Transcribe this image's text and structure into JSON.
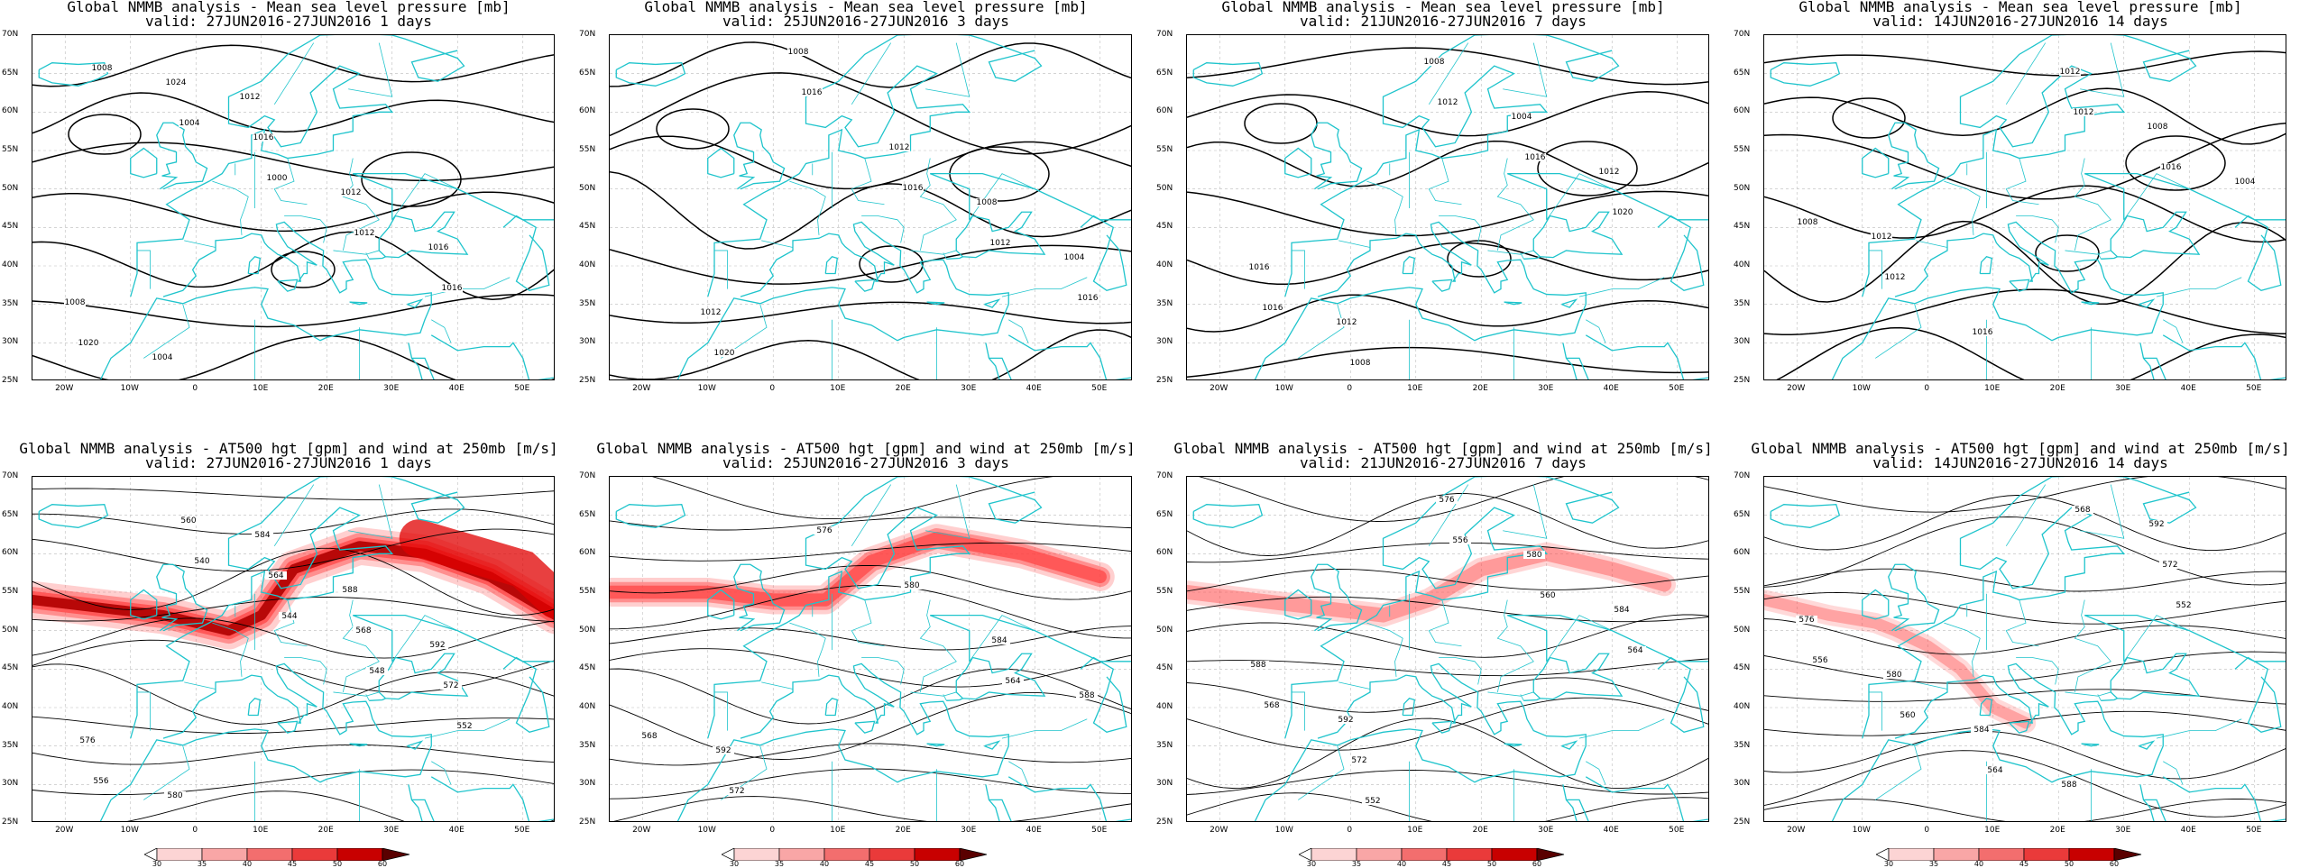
{
  "panels_top": [
    {
      "title": "Global NMMB analysis - Mean sea level pressure [mb]",
      "valid": "valid: 27JUN2016-27JUN2016   1 days",
      "labels": [
        "1008",
        "1004",
        "1000",
        "1012",
        "1016",
        "1020",
        "1024",
        "1016",
        "1012",
        "1016",
        "1008",
        "1004",
        "1012"
      ]
    },
    {
      "title": "Global NMMB analysis - Mean sea level pressure [mb]",
      "valid": "valid: 25JUN2016-27JUN2016   3 days",
      "labels": [
        "1016",
        "1012",
        "1016",
        "1020",
        "1016",
        "1012",
        "1008",
        "1004",
        "1012",
        "1008"
      ]
    },
    {
      "title": "Global NMMB analysis - Mean sea level pressure [mb]",
      "valid": "valid: 21JUN2016-27JUN2016   7 days",
      "labels": [
        "1016",
        "1008",
        "1012",
        "1016",
        "1020",
        "1016",
        "1012",
        "1008",
        "1004",
        "1012"
      ]
    },
    {
      "title": "Global NMMB analysis - Mean sea level pressure [mb]",
      "valid": "valid: 14JUN2016-27JUN2016  14 days",
      "labels": [
        "1012",
        "1016",
        "1008",
        "1012",
        "1016",
        "1012",
        "1008",
        "1004",
        "1012"
      ]
    }
  ],
  "panels_bottom": [
    {
      "title": "Global NMMB analysis - AT500 hgt [gpm] and wind at 250mb [m/s]",
      "valid": "valid: 27JUN2016-27JUN2016   1 days",
      "labels": [
        "540",
        "544",
        "548",
        "552",
        "556",
        "560",
        "564",
        "568",
        "572",
        "576",
        "580",
        "584",
        "588",
        "592"
      ]
    },
    {
      "title": "Global NMMB analysis - AT500 hgt [gpm] and wind at 250mb [m/s]",
      "valid": "valid: 25JUN2016-27JUN2016   3 days",
      "labels": [
        "564",
        "568",
        "572",
        "576",
        "580",
        "584",
        "588",
        "592"
      ]
    },
    {
      "title": "Global NMMB analysis - AT500 hgt [gpm] and wind at 250mb [m/s]",
      "valid": "valid: 21JUN2016-27JUN2016   7 days",
      "labels": [
        "552",
        "556",
        "560",
        "564",
        "568",
        "572",
        "576",
        "580",
        "584",
        "588",
        "592"
      ]
    },
    {
      "title": "Global NMMB analysis - AT500 hgt [gpm] and wind at 250mb [m/s]",
      "valid": "valid: 14JUN2016-27JUN2016  14 days",
      "labels": [
        "552",
        "556",
        "560",
        "564",
        "568",
        "572",
        "576",
        "580",
        "584",
        "588",
        "592"
      ]
    }
  ],
  "axes": {
    "lat_ticks": [
      "70N",
      "65N",
      "60N",
      "55N",
      "50N",
      "45N",
      "40N",
      "35N",
      "30N",
      "25N"
    ],
    "lon_ticks": [
      "20W",
      "10W",
      "0",
      "10E",
      "20E",
      "30E",
      "40E",
      "50E"
    ]
  },
  "colorbar": {
    "ticks": [
      "30",
      "35",
      "40",
      "45",
      "50",
      "60"
    ],
    "colors": [
      "#ffffff",
      "#fcd4d4",
      "#f9a6a6",
      "#f36e6e",
      "#ea3a3a",
      "#c80000",
      "#5a0000"
    ]
  },
  "colors": {
    "coast": "#1fc4cc",
    "contour": "#000000",
    "jet": "#ff4040"
  }
}
